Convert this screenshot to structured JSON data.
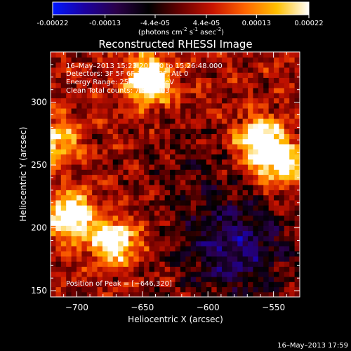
{
  "colorbar": {
    "tick_labels": [
      "-0.00022",
      "-0.00013",
      "-4.4e-05",
      "4.4e-05",
      "0.00013",
      "0.00022"
    ],
    "unit_label_main": "(photons cm",
    "unit_exp1": "-2",
    "unit_mid": " s",
    "unit_exp2": "-1",
    "unit_tail": " asec",
    "unit_exp3": "-2",
    "unit_close": ")",
    "range": [
      -0.00022,
      0.00022
    ],
    "colors": [
      "#0018ff",
      "#1c00a0",
      "#2a0048",
      "#000000",
      "#6a0000",
      "#c81400",
      "#ff6400",
      "#ffc000",
      "#ffffff"
    ]
  },
  "chart_data": {
    "type": "heatmap",
    "title": "Reconstructed RHESSI Image",
    "xlabel": "Heliocentric X (arcsec)",
    "ylabel": "Heliocentric Y (arcsec)",
    "xlim": [
      -720,
      -530
    ],
    "ylim": [
      145,
      340
    ],
    "x_ticks": [
      -700,
      -650,
      -600,
      -550
    ],
    "y_ticks": [
      150,
      200,
      250,
      300
    ],
    "x_tick_labels": [
      "−700",
      "−650",
      "−600",
      "−550"
    ],
    "y_tick_labels": [
      "150",
      "200",
      "250",
      "300"
    ],
    "annotations": [
      "16–May–2013 15:23:20.000 to 15:26:48.000",
      "Detectors: 3F 5F 6F 7F 8F 9F, Att 0",
      "Energy Range: 25.0 – 50.0 keV",
      "Clean     Total counts: 7.51E+03"
    ],
    "peak_label": "Position of Peak = [−646,320]",
    "peak": [
      -646,
      320
    ],
    "bright_sources": [
      {
        "x": -705,
        "y": 210,
        "level": 0.85
      },
      {
        "x": -672,
        "y": 190,
        "level": 0.8
      },
      {
        "x": -645,
        "y": 318,
        "level": 0.9
      },
      {
        "x": -560,
        "y": 270,
        "level": 0.85
      },
      {
        "x": -545,
        "y": 250,
        "level": 0.7
      },
      {
        "x": -715,
        "y": 270,
        "level": 0.6
      }
    ]
  },
  "footer": {
    "timestamp": "16–May–2013 17:59"
  }
}
